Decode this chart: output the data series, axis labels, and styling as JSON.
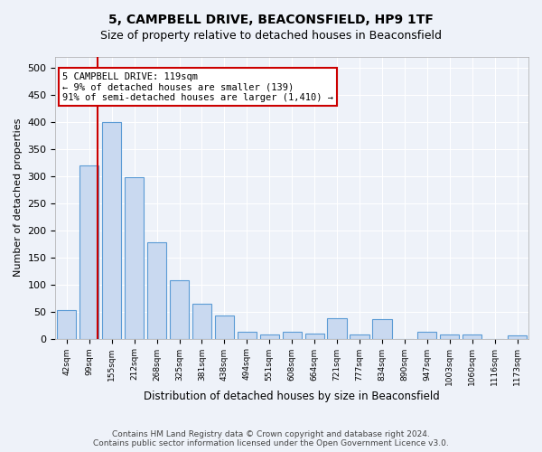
{
  "title1": "5, CAMPBELL DRIVE, BEACONSFIELD, HP9 1TF",
  "title2": "Size of property relative to detached houses in Beaconsfield",
  "xlabel": "Distribution of detached houses by size in Beaconsfield",
  "ylabel": "Number of detached properties",
  "categories": [
    "42sqm",
    "99sqm",
    "155sqm",
    "212sqm",
    "268sqm",
    "325sqm",
    "381sqm",
    "438sqm",
    "494sqm",
    "551sqm",
    "608sqm",
    "664sqm",
    "721sqm",
    "777sqm",
    "834sqm",
    "890sqm",
    "947sqm",
    "1003sqm",
    "1060sqm",
    "1116sqm",
    "1173sqm"
  ],
  "values": [
    53,
    320,
    400,
    297,
    178,
    107,
    65,
    42,
    12,
    8,
    12,
    9,
    37,
    7,
    36,
    0,
    12,
    7,
    8,
    0,
    6
  ],
  "bar_color": "#c9d9f0",
  "bar_edge_color": "#5b9bd5",
  "annotation_line1": "5 CAMPBELL DRIVE: 119sqm",
  "annotation_line2": "← 9% of detached houses are smaller (139)",
  "annotation_line3": "91% of semi-detached houses are larger (1,410) →",
  "annotation_box_color": "#ffffff",
  "annotation_box_edge": "#cc0000",
  "vline_color": "#cc0000",
  "ylim": [
    0,
    520
  ],
  "yticks": [
    0,
    50,
    100,
    150,
    200,
    250,
    300,
    350,
    400,
    450,
    500
  ],
  "footer1": "Contains HM Land Registry data © Crown copyright and database right 2024.",
  "footer2": "Contains public sector information licensed under the Open Government Licence v3.0.",
  "bg_color": "#eef2f9",
  "plot_bg_color": "#eef2f9",
  "grid_color": "#ffffff"
}
